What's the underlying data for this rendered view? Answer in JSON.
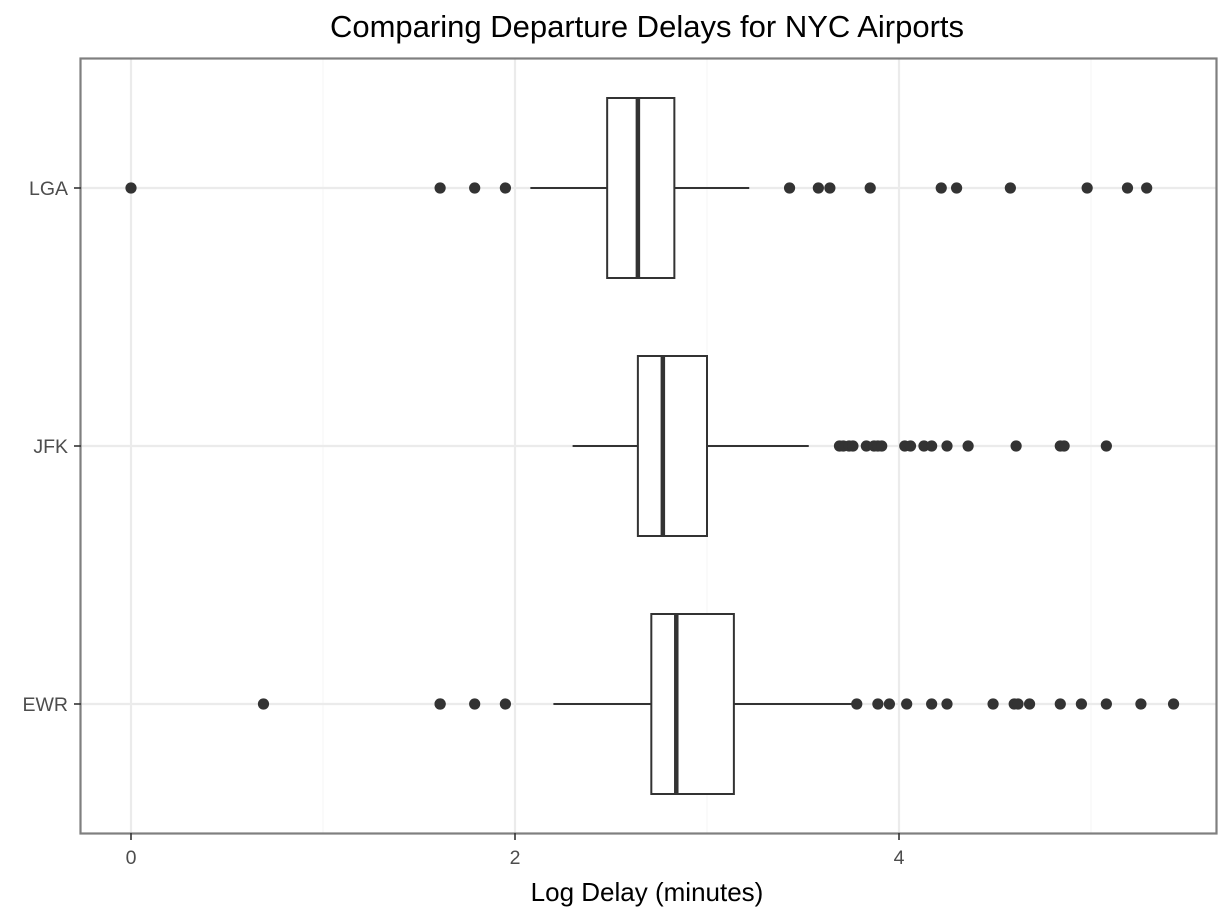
{
  "chart_data": {
    "type": "boxplot",
    "orientation": "horizontal",
    "title": "Comparing Departure Delays for NYC Airports",
    "xlabel": "Log Delay (minutes)",
    "ylabel": "",
    "xlim": [
      -0.27,
      5.65
    ],
    "x_ticks": [
      0,
      2,
      4
    ],
    "x_tick_labels": [
      "0",
      "2",
      "4"
    ],
    "x_minor_ticks": [
      1,
      3,
      5
    ],
    "categories": [
      "LGA",
      "JFK",
      "EWR"
    ],
    "grid": true,
    "legend": "none",
    "series": [
      {
        "category": "LGA",
        "lower_whisker": 2.08,
        "q1": 2.48,
        "median": 2.64,
        "q3": 2.83,
        "upper_whisker": 3.22,
        "outliers": [
          0.0,
          1.61,
          1.79,
          1.95,
          3.43,
          3.58,
          3.64,
          3.85,
          4.22,
          4.3,
          4.58,
          4.98,
          5.19,
          5.29
        ]
      },
      {
        "category": "JFK",
        "lower_whisker": 2.3,
        "q1": 2.64,
        "median": 2.77,
        "q3": 3.0,
        "upper_whisker": 3.53,
        "outliers": [
          3.69,
          3.71,
          3.74,
          3.76,
          3.83,
          3.87,
          3.89,
          3.91,
          4.03,
          4.06,
          4.13,
          4.17,
          4.25,
          4.36,
          4.61,
          4.84,
          4.86,
          5.08
        ]
      },
      {
        "category": "EWR",
        "lower_whisker": 2.2,
        "q1": 2.71,
        "median": 2.84,
        "q3": 3.14,
        "upper_whisker": 3.78,
        "outliers": [
          0.69,
          1.61,
          1.61,
          1.79,
          1.95,
          3.78,
          3.89,
          3.95,
          4.04,
          4.17,
          4.25,
          4.49,
          4.6,
          4.62,
          4.68,
          4.84,
          4.95,
          5.08,
          5.26,
          5.43
        ]
      }
    ]
  }
}
